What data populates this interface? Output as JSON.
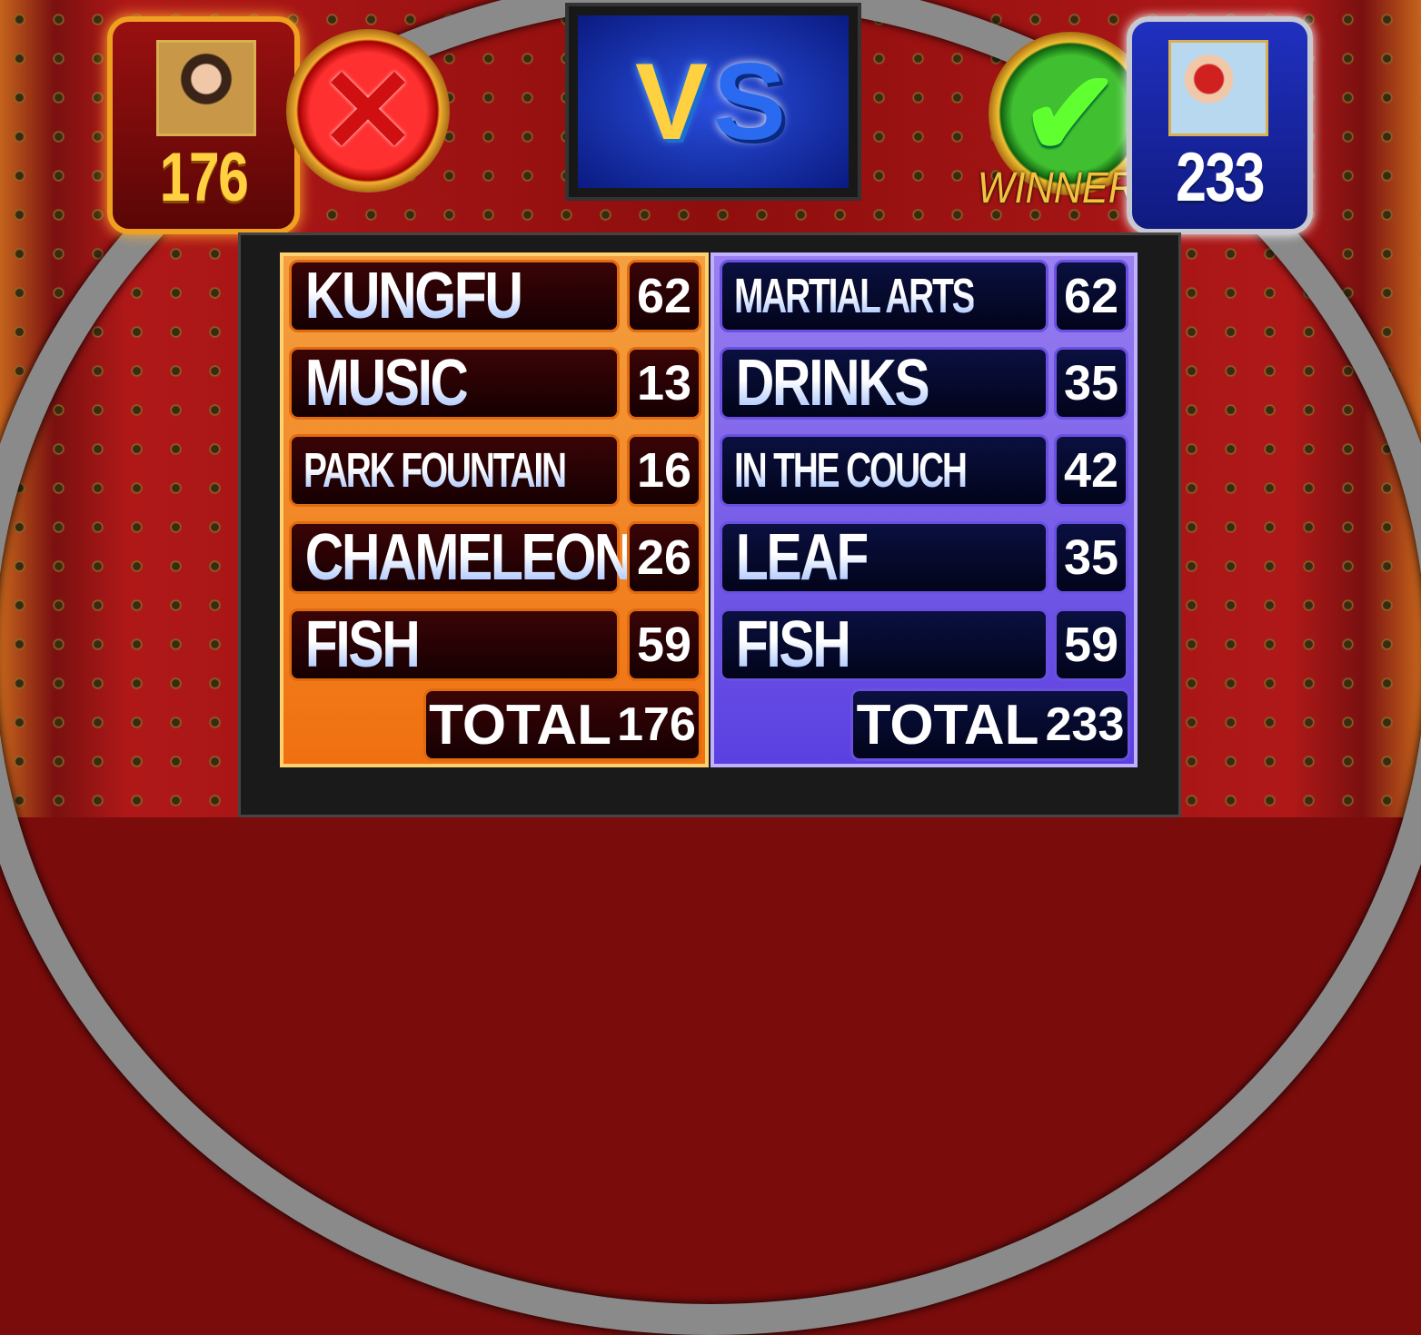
{
  "players": {
    "left": {
      "score": "176",
      "result": "loss",
      "result_icon": "red-x-icon"
    },
    "right": {
      "score": "233",
      "result": "win",
      "result_icon": "green-check-icon",
      "winner_label": "WINNER"
    }
  },
  "vs": {
    "v": "V",
    "s": "S"
  },
  "board": {
    "left": {
      "answers": [
        {
          "text": "KUNGFU",
          "points": "62"
        },
        {
          "text": "MUSIC",
          "points": "13"
        },
        {
          "text": "PARK FOUNTAIN",
          "points": "16"
        },
        {
          "text": "CHAMELEON",
          "points": "26"
        },
        {
          "text": "FISH",
          "points": "59"
        }
      ],
      "total_label": "TOTAL",
      "total": "176"
    },
    "right": {
      "answers": [
        {
          "text": "MARTIAL ARTS",
          "points": "62"
        },
        {
          "text": "DRINKS",
          "points": "35"
        },
        {
          "text": "IN THE COUCH",
          "points": "42"
        },
        {
          "text": "LEAF",
          "points": "35"
        },
        {
          "text": "FISH",
          "points": "59"
        }
      ],
      "total_label": "TOTAL",
      "total": "233"
    }
  },
  "colors": {
    "left_team": "#f07010",
    "right_team": "#5a40e0",
    "gold": "#ffd040"
  }
}
